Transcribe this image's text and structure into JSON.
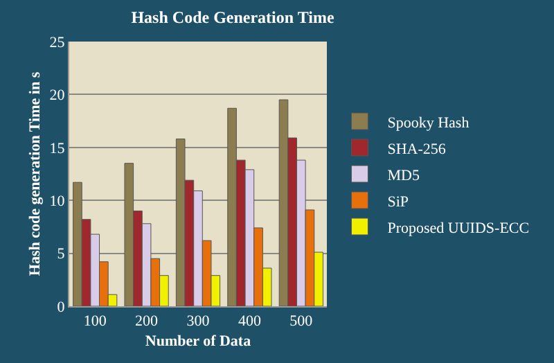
{
  "chart_data": {
    "type": "bar",
    "title": "Hash Code Generation Time",
    "xlabel": "Number of Data",
    "ylabel": "Hash code generation Time in s",
    "categories": [
      "100",
      "200",
      "300",
      "400",
      "500"
    ],
    "series": [
      {
        "name": "Spooky Hash",
        "color": "#8b7d4f",
        "values": [
          11.7,
          13.5,
          15.8,
          18.7,
          19.5
        ]
      },
      {
        "name": "SHA-256",
        "color": "#a0282c",
        "values": [
          8.2,
          9.0,
          11.9,
          13.8,
          15.9
        ]
      },
      {
        "name": "MD5",
        "color": "#d8cce8",
        "values": [
          6.8,
          7.8,
          10.9,
          12.9,
          13.8
        ]
      },
      {
        "name": "SiP",
        "color": "#e8700c",
        "values": [
          4.2,
          4.5,
          6.2,
          7.4,
          9.1
        ]
      },
      {
        "name": "Proposed UUIDS-ECC",
        "color": "#f0f000",
        "values": [
          1.1,
          2.9,
          2.9,
          3.6,
          5.1
        ]
      }
    ],
    "ylim": [
      0,
      25
    ],
    "yticks": [
      0,
      5,
      10,
      15,
      20,
      25
    ],
    "grid": "y",
    "legend": "right"
  }
}
